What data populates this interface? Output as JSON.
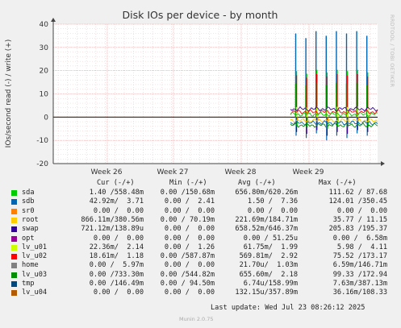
{
  "chart_data": {
    "type": "line",
    "title": "Disk IOs per device - by month",
    "ylabel": "IOs/second read (-) / write (+)",
    "ylim": [
      -20,
      40
    ],
    "yticks": [
      -20,
      -10,
      0,
      10,
      20,
      30,
      40
    ],
    "xticks": [
      "Week 26",
      "Week 27",
      "Week 28",
      "Week 29"
    ],
    "grid": true,
    "side_label": "RRDTOOL / TOBI OETIKER",
    "series": [
      {
        "name": "sda",
        "color": "#00cc00"
      },
      {
        "name": "sdb",
        "color": "#0066b3"
      },
      {
        "name": "sr0",
        "color": "#ff8000"
      },
      {
        "name": "root",
        "color": "#ffcc00"
      },
      {
        "name": "swap",
        "color": "#330099"
      },
      {
        "name": "opt",
        "color": "#990099"
      },
      {
        "name": "lv_u01",
        "color": "#ccff00"
      },
      {
        "name": "lv_u02",
        "color": "#ff0000"
      },
      {
        "name": "home",
        "color": "#808080"
      },
      {
        "name": "lv_u03",
        "color": "#008f00"
      },
      {
        "name": "tmp",
        "color": "#00487d"
      },
      {
        "name": "lv_u04",
        "color": "#b35a00"
      }
    ],
    "spikes_approx": {
      "positive_peaks": [
        36,
        34,
        37,
        35,
        37,
        36,
        37,
        35
      ],
      "negative_peaks": [
        -8,
        -9,
        -7,
        -10,
        -8,
        -9,
        -7,
        -8
      ]
    }
  },
  "legend": {
    "headers": {
      "cur": "Cur (-/+)",
      "min": "Min (-/+)",
      "avg": "Avg (-/+)",
      "max": "Max (-/+)"
    },
    "rows": [
      {
        "name": "sda",
        "cur": "1.40 /558.48m",
        "min": "0.00 /150.68m",
        "avg": "656.80m/620.26m",
        "max": "111.62 / 87.68"
      },
      {
        "name": "sdb",
        "cur": "42.92m/  3.71",
        "min": "0.00 /  2.41",
        "avg": "1.50 /  7.36",
        "max": "124.01 /350.45"
      },
      {
        "name": "sr0",
        "cur": "0.00 /  0.00",
        "min": "0.00 /  0.00",
        "avg": "0.00 /  0.00",
        "max": "0.00 /  0.00"
      },
      {
        "name": "root",
        "cur": "866.11m/380.56m",
        "min": "0.00 / 70.19m",
        "avg": "221.69m/184.71m",
        "max": "35.77 / 11.15"
      },
      {
        "name": "swap",
        "cur": "721.12m/138.89u",
        "min": "0.00 /  0.00",
        "avg": "658.52m/646.37m",
        "max": "205.83 /195.37"
      },
      {
        "name": "opt",
        "cur": "0.00 /  0.00",
        "min": "0.00 /  0.00",
        "avg": "0.00 / 51.25u",
        "max": "0.00 /  6.58m"
      },
      {
        "name": "lv_u01",
        "cur": "22.36m/  2.14",
        "min": "0.00 /  1.26",
        "avg": "61.75m/  1.99",
        "max": "5.98 /  4.11"
      },
      {
        "name": "lv_u02",
        "cur": "18.61m/  1.18",
        "min": "0.00 /587.87m",
        "avg": "569.81m/  2.92",
        "max": "75.52 /173.17"
      },
      {
        "name": "home",
        "cur": "0.00 /  5.97m",
        "min": "0.00 /  0.00",
        "avg": "21.70u/  1.03m",
        "max": "6.59m/146.71m"
      },
      {
        "name": "lv_u03",
        "cur": "0.00 /733.30m",
        "min": "0.00 /544.82m",
        "avg": "655.60m/  2.18",
        "max": "99.33 /172.94"
      },
      {
        "name": "tmp",
        "cur": "0.00 /146.49m",
        "min": "0.00 / 94.50m",
        "avg": "6.74u/158.99m",
        "max": "7.63m/387.13m"
      },
      {
        "name": "lv_u04",
        "cur": "0.00 /  0.00",
        "min": "0.00 /  0.00",
        "avg": "132.15u/357.89m",
        "max": "36.16m/108.33"
      }
    ]
  },
  "footer": {
    "last_update": "Last update: Wed Jul 23 08:26:12 2025",
    "munin": "Munin 2.0.75"
  }
}
